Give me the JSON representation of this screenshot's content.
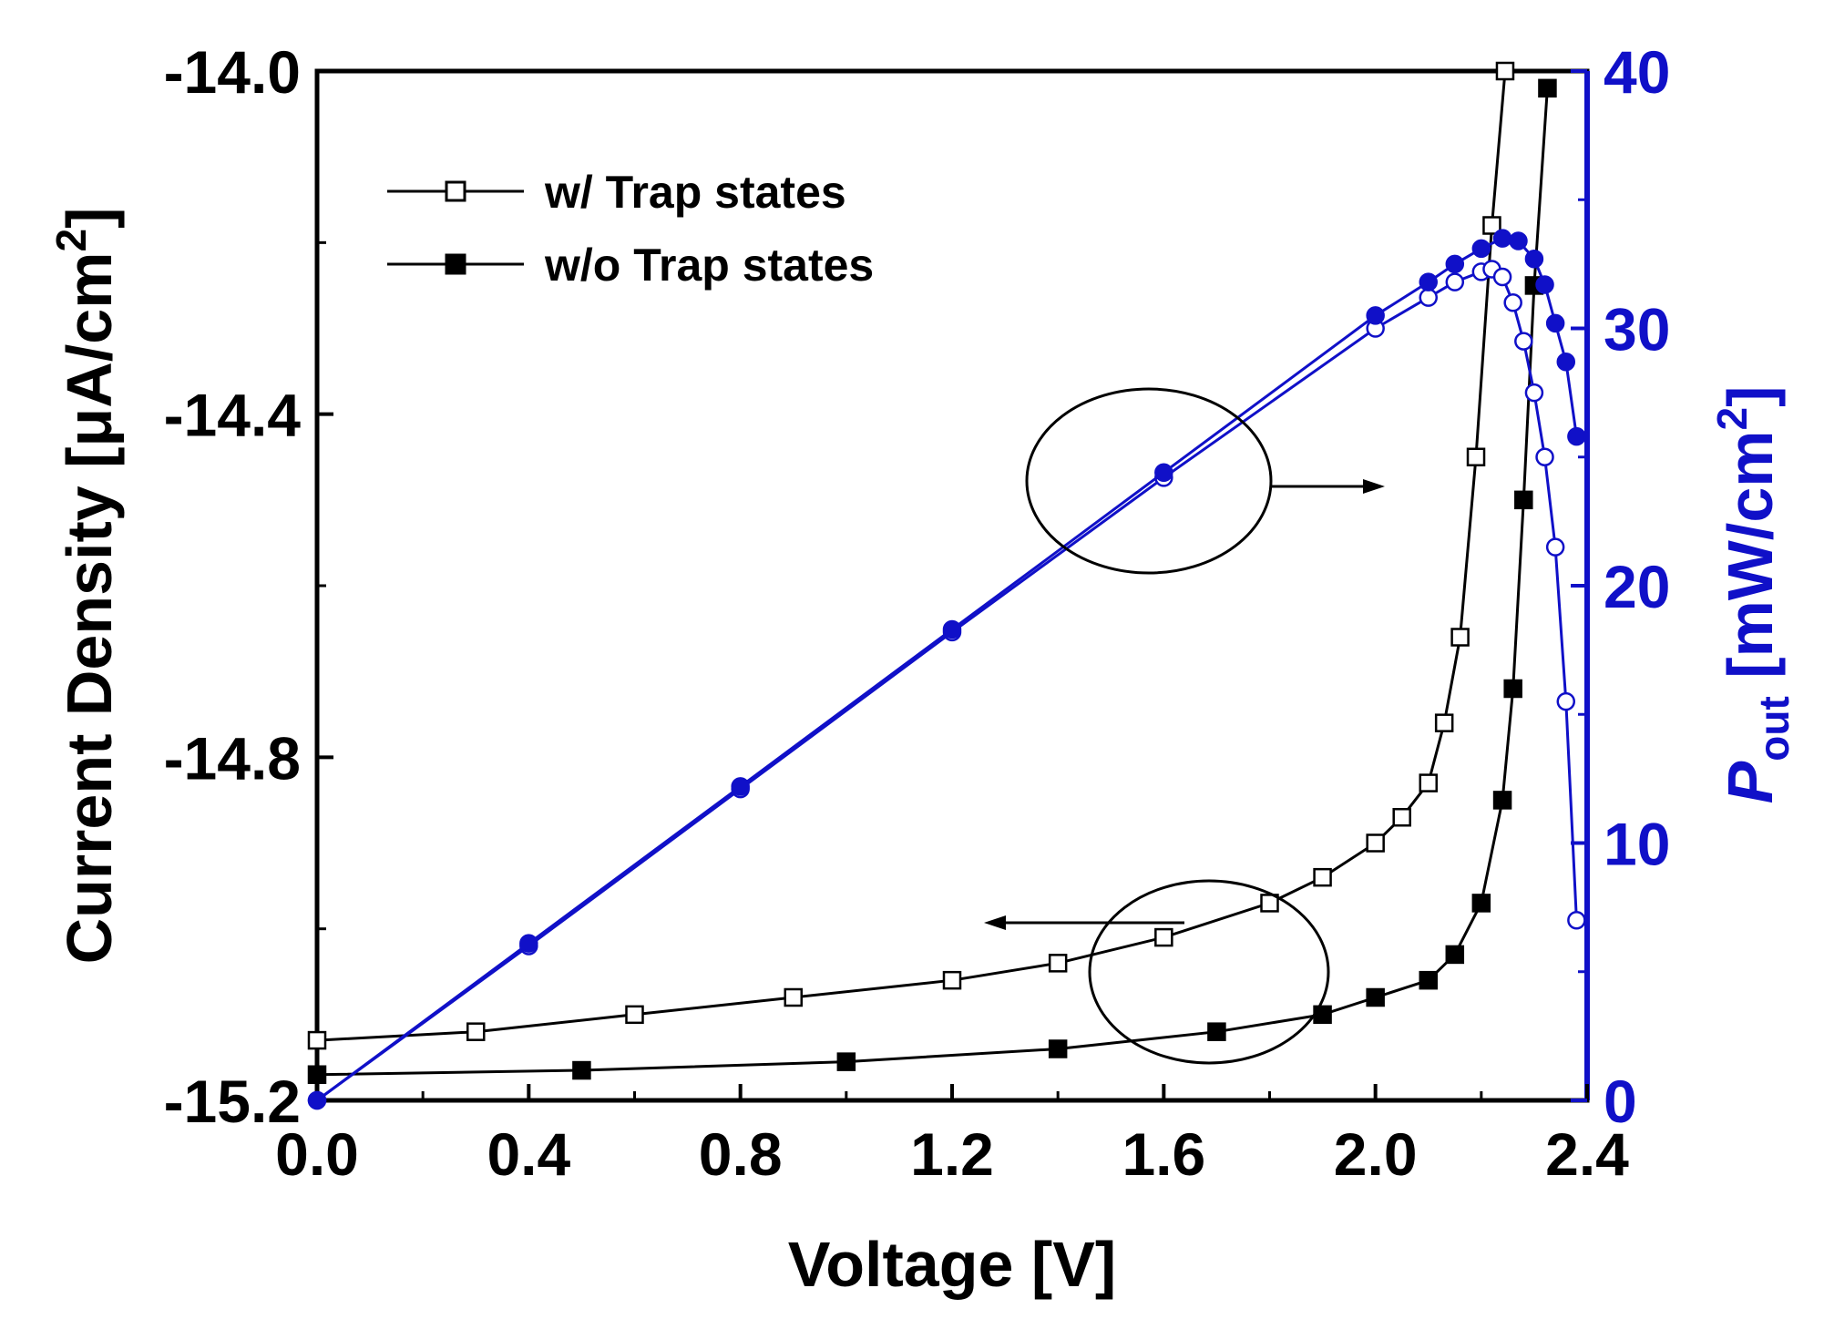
{
  "chart_data": {
    "type": "line",
    "x_axis": {
      "label": "Voltage [V]",
      "range": [
        0.0,
        2.4
      ],
      "ticks": [
        "0.0",
        "0.4",
        "0.8",
        "1.2",
        "1.6",
        "2.0",
        "2.4"
      ]
    },
    "y_left": {
      "label_main": "Current Density [",
      "label_mu": "μ",
      "label_unit": "A/cm",
      "label_sup": "2",
      "label_close": "]",
      "range": [
        -15.2,
        -14.0
      ],
      "ticks": [
        "-14.0",
        "-14.4",
        "-14.8",
        "-15.2"
      ]
    },
    "y_right": {
      "label_p": "P",
      "label_sub": "out",
      "label_unit": " [mW/cm",
      "label_sup": "2",
      "label_close": "]",
      "range": [
        0,
        40
      ],
      "ticks": [
        "0",
        "10",
        "20",
        "30",
        "40"
      ],
      "color": "#1010c8"
    },
    "legend": [
      {
        "label": "w/ Trap states",
        "marker": "open-square"
      },
      {
        "label": "w/o Trap states",
        "marker": "filled-square"
      }
    ],
    "series": [
      {
        "name": "w/ Trap states (current density)",
        "axis": "left",
        "marker": "open-square",
        "color": "#000000",
        "x": [
          0.0,
          0.3,
          0.6,
          0.9,
          1.2,
          1.4,
          1.6,
          1.8,
          1.9,
          2.0,
          2.05,
          2.1,
          2.13,
          2.16,
          2.19,
          2.22,
          2.245
        ],
        "y": [
          -15.13,
          -15.12,
          -15.1,
          -15.08,
          -15.06,
          -15.04,
          -15.01,
          -14.97,
          -14.94,
          -14.9,
          -14.87,
          -14.83,
          -14.76,
          -14.66,
          -14.45,
          -14.18,
          -14.0
        ]
      },
      {
        "name": "w/o Trap states (current density)",
        "axis": "left",
        "marker": "filled-square",
        "color": "#000000",
        "x": [
          0.0,
          0.5,
          1.0,
          1.4,
          1.7,
          1.9,
          2.0,
          2.1,
          2.15,
          2.2,
          2.24,
          2.26,
          2.28,
          2.3,
          2.325
        ],
        "y": [
          -15.17,
          -15.165,
          -15.155,
          -15.14,
          -15.12,
          -15.1,
          -15.08,
          -15.06,
          -15.03,
          -14.97,
          -14.85,
          -14.72,
          -14.5,
          -14.25,
          -14.02
        ]
      },
      {
        "name": "w/ Trap states (output power)",
        "axis": "right",
        "marker": "open-circle",
        "color": "#1010c8",
        "x": [
          0.0,
          0.4,
          0.8,
          1.2,
          1.6,
          2.0,
          2.1,
          2.15,
          2.2,
          2.22,
          2.24,
          2.26,
          2.28,
          2.3,
          2.32,
          2.34,
          2.36,
          2.38
        ],
        "y": [
          0,
          6.0,
          12.1,
          18.2,
          24.2,
          30.0,
          31.2,
          31.8,
          32.2,
          32.3,
          32.0,
          31.0,
          29.5,
          27.5,
          25.0,
          21.5,
          15.5,
          7.0
        ]
      },
      {
        "name": "w/o Trap states (output power)",
        "axis": "right",
        "marker": "filled-circle",
        "color": "#1010c8",
        "x": [
          0.0,
          0.4,
          0.8,
          1.2,
          1.6,
          2.0,
          2.1,
          2.15,
          2.2,
          2.24,
          2.27,
          2.3,
          2.32,
          2.34,
          2.36,
          2.38
        ],
        "y": [
          0,
          6.1,
          12.2,
          18.3,
          24.4,
          30.5,
          31.8,
          32.5,
          33.1,
          33.5,
          33.4,
          32.7,
          31.7,
          30.2,
          28.7,
          25.8
        ]
      }
    ],
    "annotations": [
      {
        "shape": "ellipse",
        "arrow": "right",
        "target_axis": "right"
      },
      {
        "shape": "ellipse",
        "arrow": "left",
        "target_axis": "left"
      }
    ]
  }
}
